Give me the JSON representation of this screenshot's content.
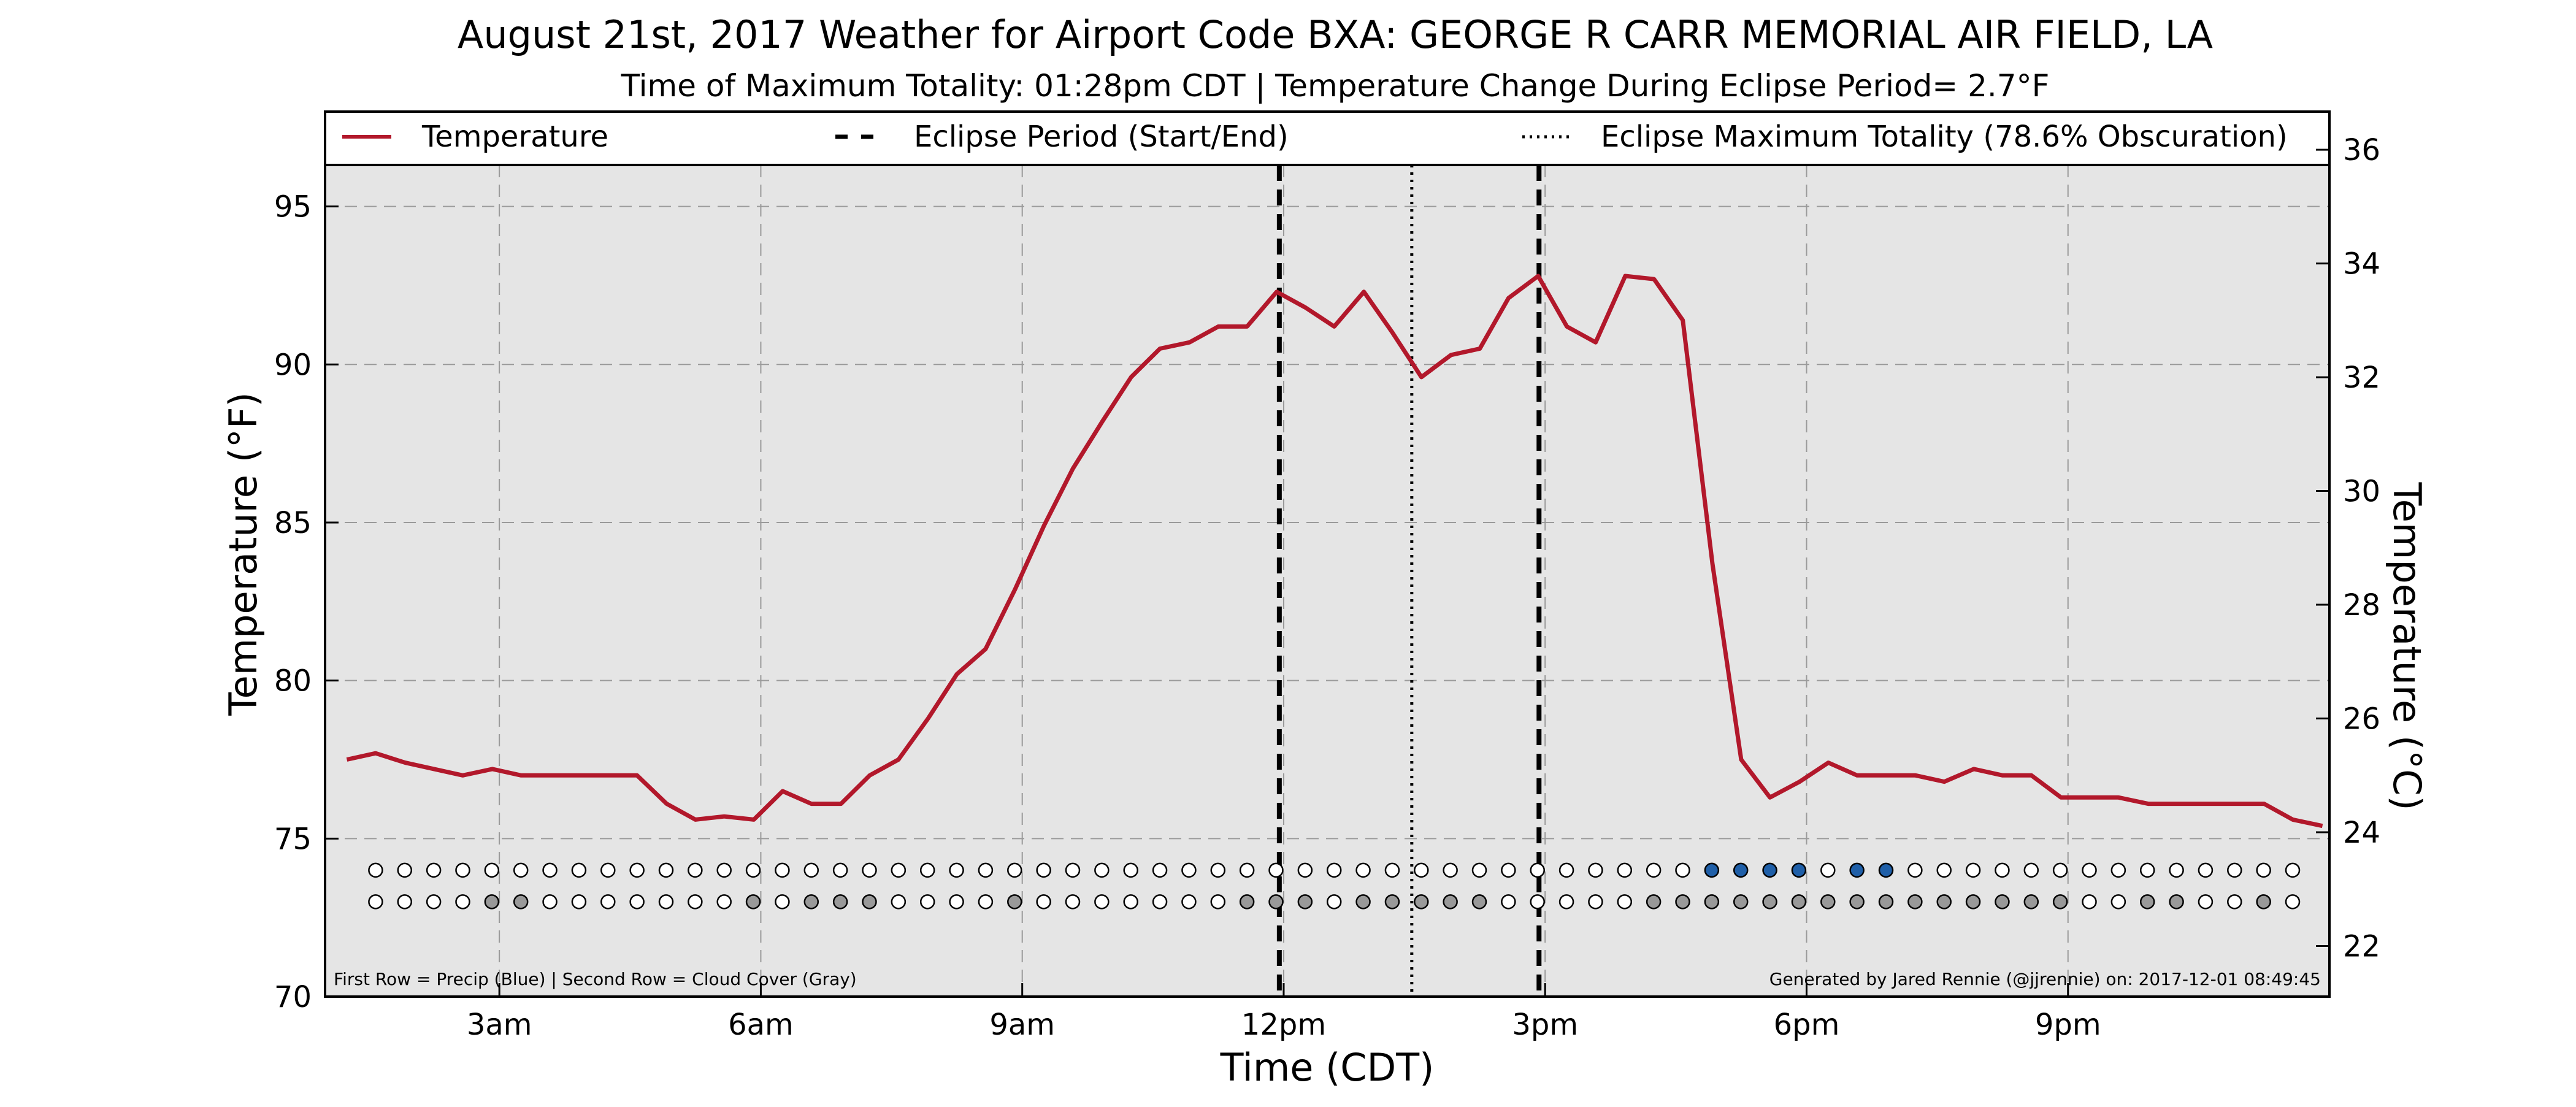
{
  "chart_data": {
    "type": "line",
    "title": "August 21st, 2017 Weather for Airport Code BXA: GEORGE R CARR MEMORIAL AIR FIELD, LA",
    "subtitle": "Time of Maximum Totality: 01:28pm CDT | Temperature Change During Eclipse Period= 2.7$^\\circ$F",
    "subtitle_display": "Time of Maximum Totality: 01:28pm CDT | Temperature Change During Eclipse Period= 2.7°F",
    "xlabel": "Time (CDT)",
    "ylabel": "Temperature ($^\\circ$F)",
    "ylabel_display": "Temperature (°F)",
    "ylabel_right_display": "Temperature (°C)",
    "xlim": [
      1.0,
      24.0
    ],
    "ylim": [
      70,
      98
    ],
    "ylim_right": [
      21.11,
      36.67
    ],
    "yticks": [
      70,
      75,
      80,
      85,
      90,
      95
    ],
    "yticks_right": [
      22,
      24,
      26,
      28,
      30,
      32,
      34,
      36
    ],
    "xticks": [
      {
        "x": 3,
        "label": "3am"
      },
      {
        "x": 6,
        "label": "6am"
      },
      {
        "x": 9,
        "label": "9am"
      },
      {
        "x": 12,
        "label": "12pm"
      },
      {
        "x": 15,
        "label": "3pm"
      },
      {
        "x": 18,
        "label": "6pm"
      },
      {
        "x": 21,
        "label": "9pm"
      }
    ],
    "grid": true,
    "legend_position": "top",
    "legend": [
      {
        "label": "Temperature",
        "style": "solid",
        "color": "#b2182b"
      },
      {
        "label": "Eclipse Period (Start/End)",
        "style": "dashed",
        "color": "#000000"
      },
      {
        "label": "Eclipse Maximum Totality (78.6% Obscuration)",
        "style": "dotted",
        "color": "#000000"
      }
    ],
    "series": [
      {
        "name": "Temperature",
        "color": "#b2182b",
        "x": [
          1.25,
          1.58,
          1.92,
          2.25,
          2.58,
          2.92,
          3.25,
          3.58,
          3.92,
          4.25,
          4.58,
          4.92,
          5.25,
          5.58,
          5.92,
          6.25,
          6.58,
          6.92,
          7.25,
          7.58,
          7.92,
          8.25,
          8.58,
          8.92,
          9.25,
          9.58,
          9.92,
          10.25,
          10.58,
          10.92,
          11.25,
          11.58,
          11.92,
          12.25,
          12.58,
          12.92,
          13.25,
          13.58,
          13.92,
          14.25,
          14.58,
          14.92,
          15.25,
          15.58,
          15.92,
          16.25,
          16.58,
          16.92,
          17.25,
          17.58,
          17.92,
          18.25,
          18.58,
          18.92,
          19.25,
          19.58,
          19.92,
          20.25,
          20.58,
          20.92,
          21.25,
          21.58,
          21.92,
          22.25,
          22.58,
          22.92,
          23.25,
          23.58,
          23.92
        ],
        "y": [
          77.5,
          77.7,
          77.4,
          77.2,
          77.0,
          77.2,
          77.0,
          77.0,
          77.0,
          77.0,
          77.0,
          76.1,
          75.6,
          75.7,
          75.6,
          76.5,
          76.1,
          76.1,
          77.0,
          77.5,
          78.8,
          80.2,
          81.0,
          82.9,
          84.9,
          86.7,
          88.2,
          89.6,
          90.5,
          90.7,
          91.2,
          91.2,
          92.3,
          91.8,
          91.2,
          92.3,
          91.0,
          89.6,
          90.3,
          90.5,
          92.1,
          92.8,
          91.2,
          90.7,
          92.8,
          92.7,
          91.4,
          83.7,
          77.5,
          76.3,
          76.8,
          77.4,
          77.0,
          77.0,
          77.0,
          76.8,
          77.2,
          77.0,
          77.0,
          76.3,
          76.3,
          76.3,
          76.1,
          76.1,
          76.1,
          76.1,
          76.1,
          75.6,
          75.4
        ]
      }
    ],
    "eclipse_lines": {
      "start": 11.95,
      "max": 13.47,
      "end": 14.93
    },
    "markers": {
      "x_start": 1.58,
      "x_step": 0.3333,
      "count": 67,
      "precip_y": 74.0,
      "cloud_y": 73.0,
      "precip_color": "#1f5fa8",
      "cloud_color": "#999999",
      "empty_color": "#ffffff",
      "precip_filled_indices": [
        46,
        47,
        48,
        49,
        51,
        52
      ],
      "cloud_filled_indices": [
        4,
        5,
        13,
        15,
        16,
        17,
        22,
        30,
        31,
        32,
        34,
        35,
        36,
        37,
        38,
        44,
        45,
        46,
        47,
        48,
        49,
        50,
        51,
        52,
        53,
        54,
        55,
        56,
        57,
        58,
        61,
        62,
        65
      ]
    },
    "footnote_left": "First Row = Precip (Blue) | Second Row = Cloud Cover (Gray)",
    "footnote_right": "Generated by Jared Rennie (@jjrennie) on: 2017-12-01 08:49:45"
  }
}
